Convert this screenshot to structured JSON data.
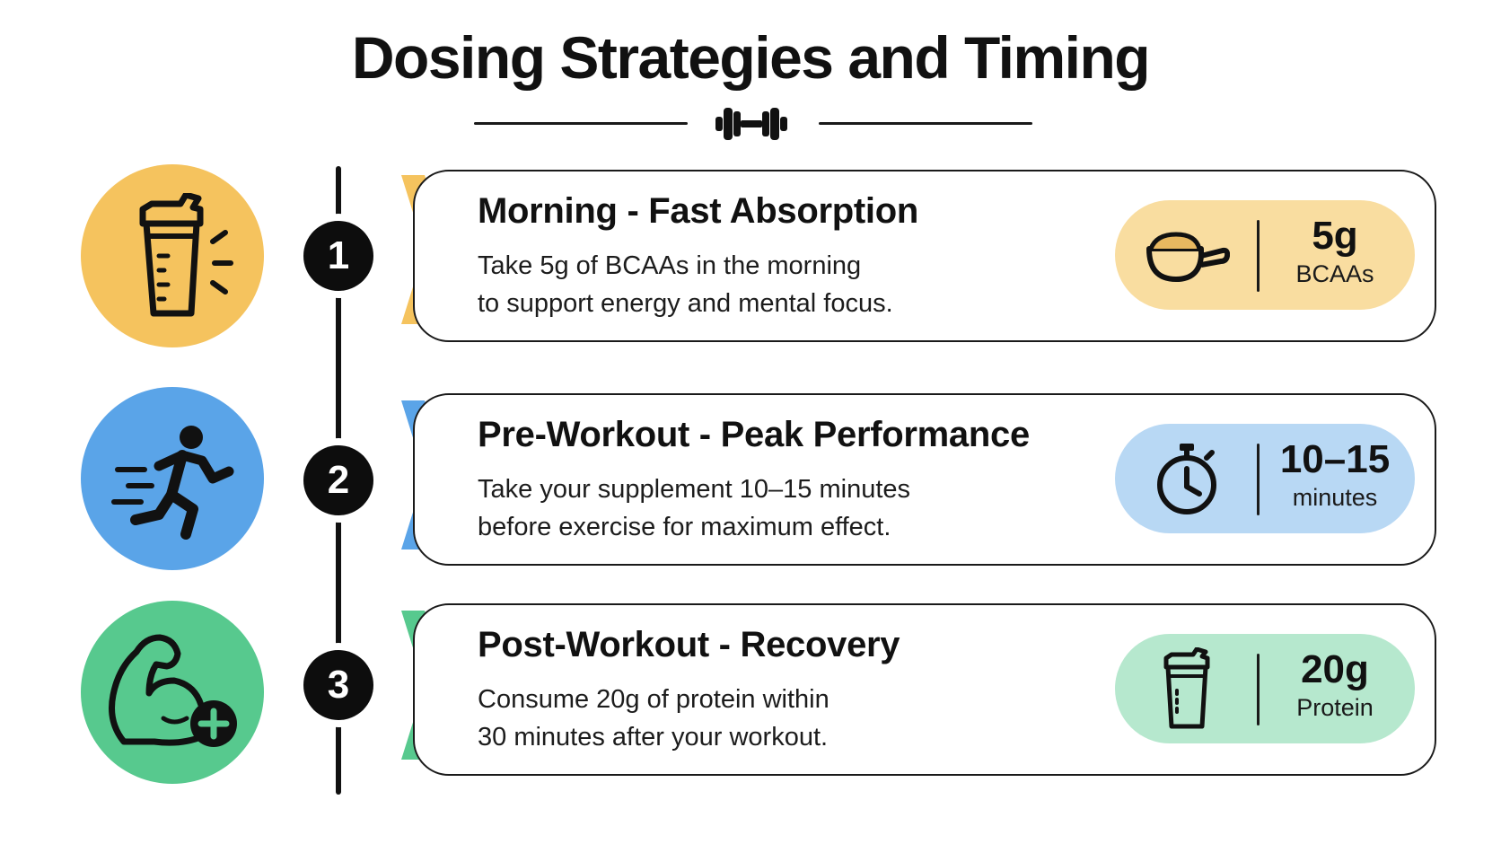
{
  "title": "Dosing Strategies and Timing",
  "colors": {
    "yellow": "#F5C35E",
    "yellow_light": "#F9DDA0",
    "blue": "#5AA4E8",
    "blue_light": "#B8D8F4",
    "green": "#57C98E",
    "green_light": "#B6E8CE",
    "dark": "#111111"
  },
  "steps": [
    {
      "number": "1",
      "icon": "shaker-bottle-icon",
      "color": "#F5C35E",
      "pill_color": "#F9DDA0",
      "title": "Morning - Fast Absorption",
      "description_lines": [
        "Take 5g of BCAAs in the morning",
        "to support energy and mental focus."
      ],
      "badge_icon": "scoop-icon",
      "badge_value": "5g",
      "badge_unit": "BCAAs"
    },
    {
      "number": "2",
      "icon": "runner-icon",
      "color": "#5AA4E8",
      "pill_color": "#B8D8F4",
      "title": "Pre-Workout - Peak Performance",
      "description_lines": [
        "Take your supplement 10–15 minutes",
        "before exercise for maximum effect."
      ],
      "badge_icon": "stopwatch-icon",
      "badge_value": "10–15",
      "badge_unit": "minutes"
    },
    {
      "number": "3",
      "icon": "flexed-arm-plus-icon",
      "color": "#57C98E",
      "pill_color": "#B6E8CE",
      "title": "Post-Workout - Recovery",
      "description_lines": [
        "Consume 20g of protein within",
        "30 minutes after your workout."
      ],
      "badge_icon": "shaker-bottle-icon",
      "badge_value": "20g",
      "badge_unit": "Protein"
    }
  ]
}
